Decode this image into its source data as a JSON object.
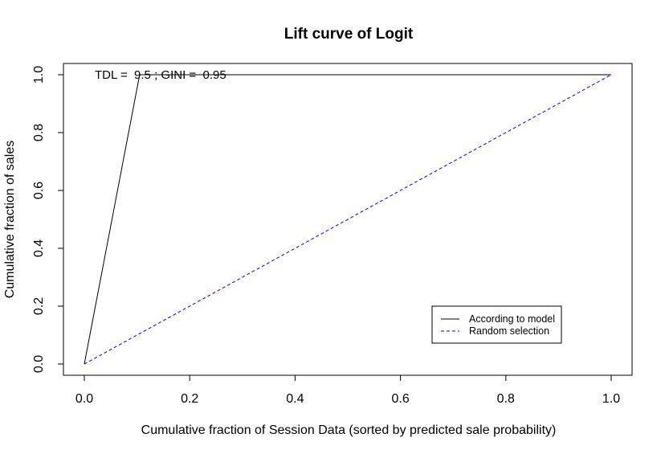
{
  "chart_data": {
    "type": "line",
    "title": "Lift curve of Logit",
    "xlabel": "Cumulative fraction of Session Data (sorted by predicted sale probability)",
    "ylabel": "Cumulative fraction of sales",
    "xlim": [
      0,
      1
    ],
    "ylim": [
      0,
      1
    ],
    "x_ticks": [
      0.0,
      0.2,
      0.4,
      0.6,
      0.8,
      1.0
    ],
    "x_tick_labels": [
      "0.0",
      "0.2",
      "0.4",
      "0.6",
      "0.8",
      "1.0"
    ],
    "y_ticks": [
      0.0,
      0.2,
      0.4,
      0.6,
      0.8,
      1.0
    ],
    "y_tick_labels": [
      "0.0",
      "0.2",
      "0.4",
      "0.6",
      "0.8",
      "1.0"
    ],
    "grid": false,
    "annotation": "TDL =  9.5 ; GINI =  0.95",
    "legend_position": "bottom-right",
    "series": [
      {
        "name": "According to model",
        "style": "solid",
        "color": "#000000",
        "x": [
          0.0,
          0.105,
          1.0
        ],
        "y": [
          0.0,
          1.0,
          1.0
        ]
      },
      {
        "name": "Random selection",
        "style": "dashed",
        "color": "#0000ff",
        "x": [
          0.0,
          1.0
        ],
        "y": [
          0.0,
          1.0
        ]
      }
    ]
  }
}
